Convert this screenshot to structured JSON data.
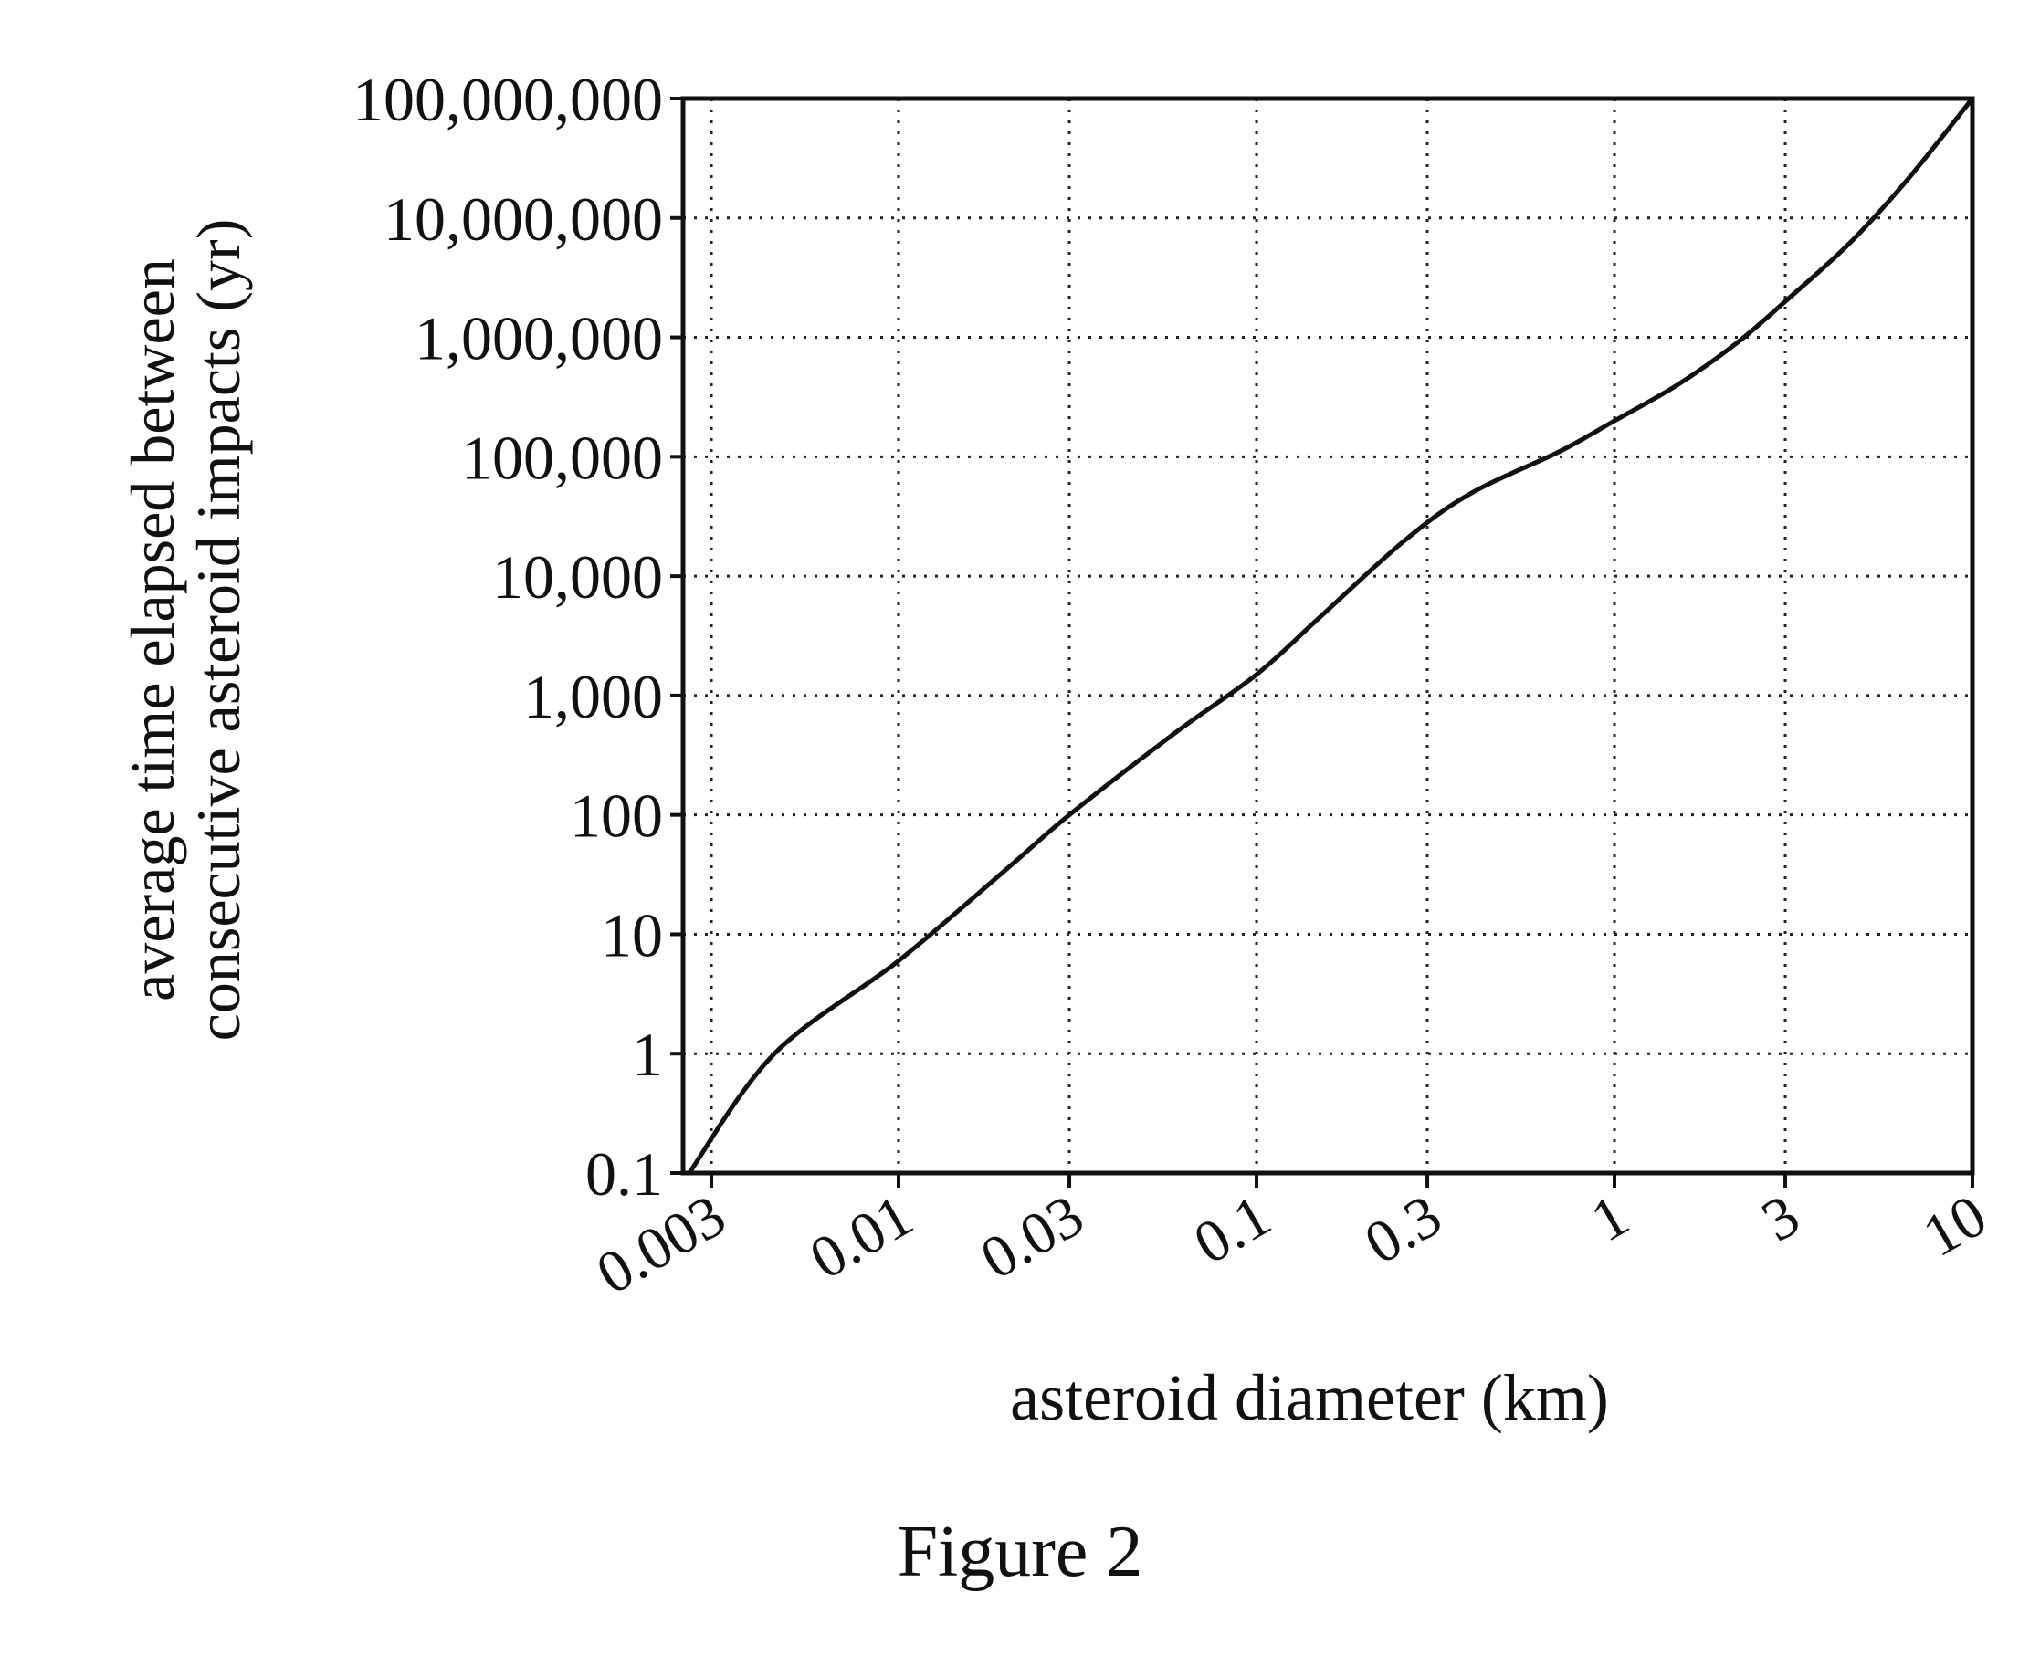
{
  "figure": {
    "caption": "Figure 2"
  },
  "chart_data": {
    "type": "line",
    "title": "",
    "xlabel": "asteroid diameter (km)",
    "ylabel_lines": [
      "average time elapsed between",
      "consecutive asteroid impacts (yr)"
    ],
    "x_scale": "log",
    "y_scale": "log",
    "xlim": [
      0.0025,
      10
    ],
    "ylim": [
      0.1,
      100000000
    ],
    "x_ticks": [
      {
        "value": 0.003,
        "label": "0.003"
      },
      {
        "value": 0.01,
        "label": "0.01"
      },
      {
        "value": 0.03,
        "label": "0.03"
      },
      {
        "value": 0.1,
        "label": "0.1"
      },
      {
        "value": 0.3,
        "label": "0.3"
      },
      {
        "value": 1,
        "label": "1"
      },
      {
        "value": 3,
        "label": "3"
      },
      {
        "value": 10,
        "label": "10"
      }
    ],
    "y_ticks": [
      {
        "value": 0.1,
        "label": "0.1"
      },
      {
        "value": 1,
        "label": "1"
      },
      {
        "value": 10,
        "label": "10"
      },
      {
        "value": 100,
        "label": "100"
      },
      {
        "value": 1000,
        "label": "1,000"
      },
      {
        "value": 10000,
        "label": "10,000"
      },
      {
        "value": 100000,
        "label": "100,000"
      },
      {
        "value": 1000000,
        "label": "1,000,000"
      },
      {
        "value": 10000000,
        "label": "10,000,000"
      },
      {
        "value": 100000000,
        "label": "100,000,000"
      }
    ],
    "grid": true,
    "grid_style": "dotted",
    "line_color": "#111111",
    "series": [
      {
        "x": [
          0.0026,
          0.0045,
          0.01,
          0.02,
          0.03,
          0.06,
          0.1,
          0.15,
          0.26,
          0.4,
          0.7,
          1.0,
          1.5,
          2.2,
          3.0,
          4.5,
          6.5,
          10
        ],
        "y": [
          0.1,
          1,
          6,
          35,
          100,
          500,
          1500,
          4500,
          20000,
          50000,
          110000,
          200000,
          400000,
          900000,
          2000000,
          6000000,
          20000000,
          100000000
        ]
      }
    ]
  }
}
